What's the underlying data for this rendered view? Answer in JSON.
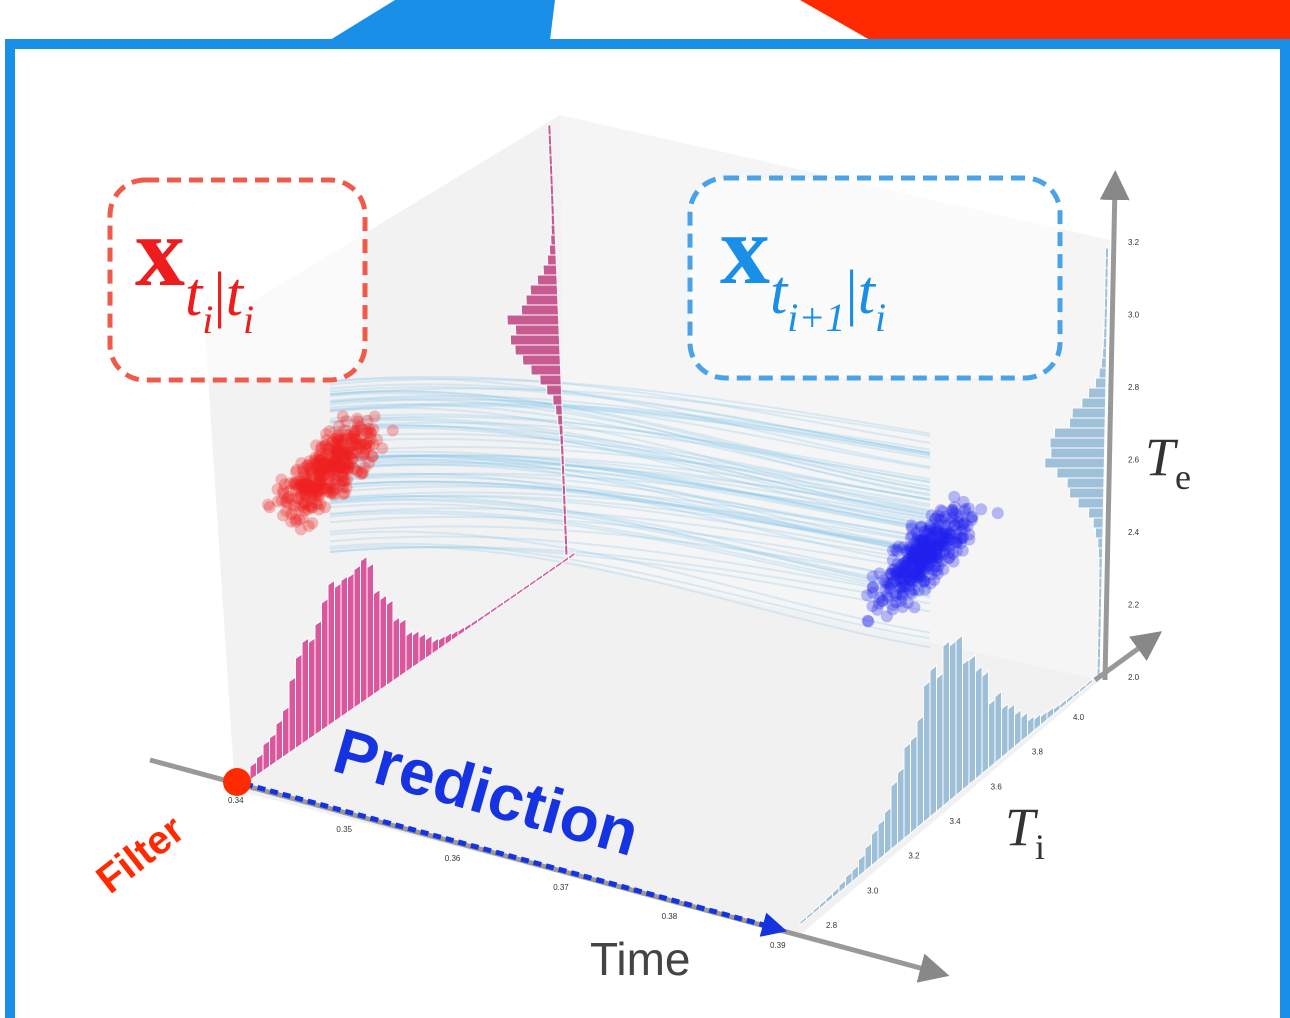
{
  "filtered_label": {
    "base": "x",
    "sub": "t",
    "subsub": "i",
    "sep": "|",
    "sub2": "t",
    "subsub2": "i"
  },
  "predicted_label": {
    "base": "x",
    "sub": "t",
    "subsub": "i+1",
    "sep": "|",
    "sub2": "t",
    "subsub2": "i"
  },
  "filter_label": "Filter",
  "prediction_label": "Prediction",
  "axes": {
    "time": {
      "label": "Time",
      "ticks": [
        "0.34",
        "0.35",
        "0.36",
        "0.37",
        "0.38",
        "0.39"
      ]
    },
    "ti": {
      "label": "T",
      "sub": "i",
      "ticks": [
        "2.8",
        "3.0",
        "3.2",
        "3.4",
        "3.6",
        "3.8",
        "4.0"
      ]
    },
    "te": {
      "label": "T",
      "sub": "e",
      "ticks": [
        "2.0",
        "2.2",
        "2.4",
        "2.6",
        "2.8",
        "3.0",
        "3.2"
      ]
    }
  }
}
